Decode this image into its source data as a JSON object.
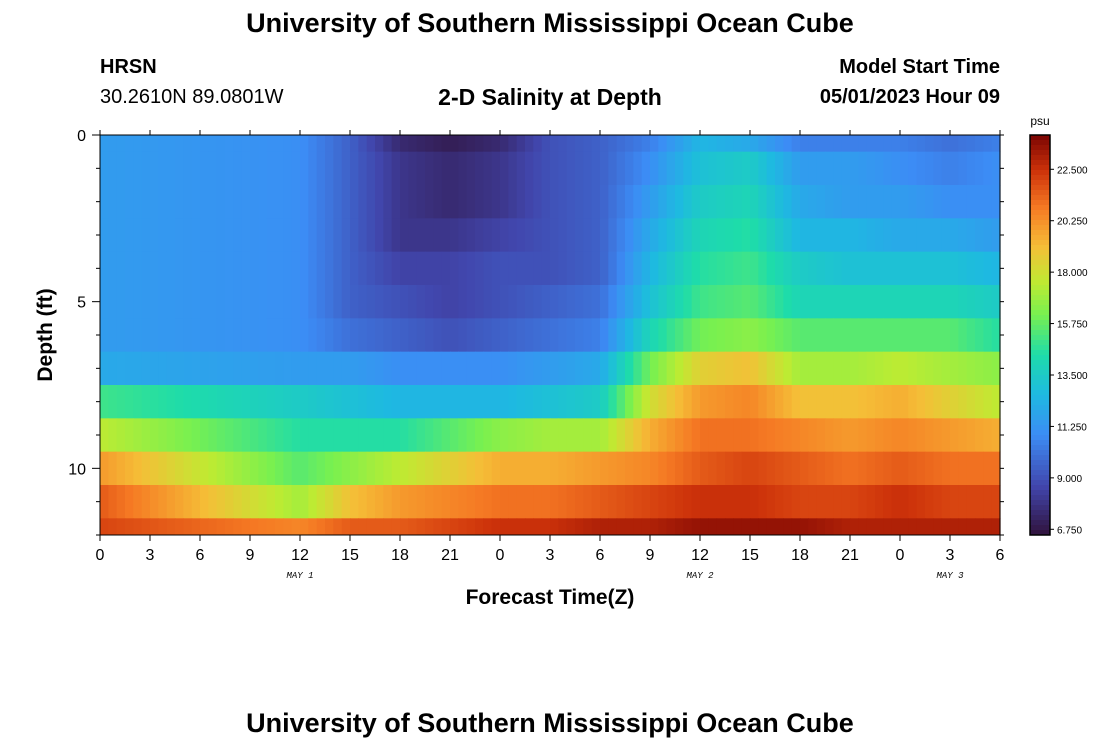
{
  "header": {
    "title": "University of Southern Mississippi Ocean Cube",
    "station": "HRSN",
    "coords": "30.2610N  89.0801W",
    "subtitle": "2-D Salinity at Depth",
    "start_label": "Model Start Time",
    "start_value": "05/01/2023 Hour 09"
  },
  "footer": {
    "title": "University of Southern Mississippi Ocean Cube"
  },
  "chart_data": {
    "type": "heatmap",
    "title": "2-D Salinity at Depth",
    "xlabel": "Forecast Time(Z)",
    "ylabel": "Depth (ft)",
    "x_ticks": [
      "0",
      "3",
      "6",
      "9",
      "12",
      "15",
      "18",
      "21",
      "0",
      "3",
      "6",
      "9",
      "12",
      "15",
      "18",
      "21",
      "0",
      "3",
      "6"
    ],
    "x_tick_hours": [
      0,
      3,
      6,
      9,
      12,
      15,
      18,
      21,
      24,
      27,
      30,
      33,
      36,
      39,
      42,
      45,
      48,
      51,
      54
    ],
    "x_range": [
      0,
      54
    ],
    "day_labels": [
      {
        "text": "MAY 1",
        "hour": 12
      },
      {
        "text": "MAY 2",
        "hour": 36
      },
      {
        "text": "MAY 3",
        "hour": 51
      }
    ],
    "y_ticks": [
      0,
      5,
      10
    ],
    "y_range": [
      0,
      12
    ],
    "layer_bounds_ft": [
      0,
      0.5,
      1.5,
      2.5,
      3.5,
      4.5,
      5.5,
      6.5,
      7.5,
      8.5,
      9.5,
      10.5,
      11.5,
      12
    ],
    "colorbar": {
      "unit": "psu",
      "range": [
        6.5,
        24
      ],
      "ticks": [
        "22.500",
        "20.250",
        "18.000",
        "15.750",
        "13.500",
        "11.250",
        "9.000",
        "6.750"
      ],
      "tick_values": [
        22.5,
        20.25,
        18.0,
        15.75,
        13.5,
        11.25,
        9.0,
        6.75
      ]
    },
    "salinity_keyframes": {
      "hours": [
        0,
        12,
        15,
        18,
        21,
        24,
        27,
        30,
        33,
        36,
        39,
        42,
        45,
        48,
        51,
        54
      ],
      "layers": [
        [
          11.5,
          11.0,
          9.5,
          7.5,
          7.0,
          7.5,
          9.0,
          9.5,
          10.5,
          12.5,
          12.0,
          10.5,
          10.5,
          10.5,
          10.0,
          10.5
        ],
        [
          11.5,
          11.0,
          9.5,
          8.0,
          7.5,
          8.0,
          9.0,
          9.5,
          11.0,
          13.0,
          13.5,
          11.5,
          11.5,
          11.0,
          10.5,
          11.0
        ],
        [
          11.5,
          11.0,
          9.5,
          8.0,
          7.5,
          8.0,
          9.0,
          9.5,
          11.5,
          13.5,
          14.0,
          12.0,
          11.5,
          11.5,
          11.0,
          11.0
        ],
        [
          11.5,
          11.0,
          9.5,
          8.0,
          8.0,
          8.5,
          9.0,
          9.5,
          12.0,
          14.0,
          14.5,
          12.5,
          12.5,
          12.0,
          12.0,
          11.5
        ],
        [
          11.5,
          11.0,
          9.5,
          8.5,
          8.5,
          9.0,
          9.0,
          9.5,
          12.5,
          14.5,
          15.0,
          13.5,
          13.0,
          13.0,
          13.0,
          12.5
        ],
        [
          11.5,
          11.0,
          9.5,
          9.0,
          8.5,
          9.0,
          9.5,
          10.0,
          13.0,
          15.0,
          15.5,
          14.0,
          14.0,
          14.0,
          14.0,
          13.5
        ],
        [
          11.5,
          11.0,
          10.0,
          9.5,
          9.0,
          9.5,
          10.0,
          10.5,
          14.0,
          16.0,
          16.5,
          15.5,
          15.5,
          15.5,
          15.5,
          14.5
        ],
        [
          12.0,
          11.5,
          11.5,
          11.0,
          11.0,
          11.0,
          11.5,
          12.0,
          16.0,
          18.5,
          19.0,
          17.0,
          17.0,
          17.5,
          17.0,
          16.5
        ],
        [
          15.0,
          13.5,
          13.0,
          12.5,
          12.5,
          12.5,
          13.0,
          13.5,
          18.0,
          20.0,
          20.5,
          19.0,
          19.0,
          19.5,
          18.5,
          17.5
        ],
        [
          17.5,
          14.5,
          14.5,
          14.5,
          15.5,
          16.5,
          17.0,
          17.0,
          19.5,
          21.0,
          21.0,
          20.5,
          20.0,
          20.5,
          20.0,
          19.5
        ],
        [
          20.0,
          15.5,
          16.5,
          17.5,
          18.5,
          19.5,
          19.5,
          20.0,
          20.5,
          21.5,
          22.0,
          21.5,
          21.0,
          21.5,
          21.0,
          21.0
        ],
        [
          21.5,
          17.0,
          19.0,
          20.0,
          20.5,
          21.0,
          21.0,
          21.5,
          22.0,
          22.5,
          22.5,
          22.0,
          22.0,
          22.5,
          22.0,
          22.0
        ],
        [
          22.0,
          20.5,
          21.5,
          21.5,
          22.0,
          22.5,
          22.5,
          23.0,
          23.0,
          23.5,
          23.5,
          23.5,
          23.0,
          23.0,
          23.0,
          23.0
        ]
      ]
    }
  }
}
